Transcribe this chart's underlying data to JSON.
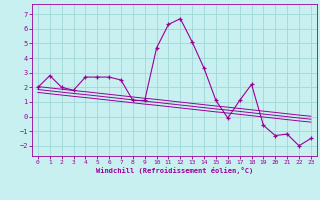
{
  "xlabel": "Windchill (Refroidissement éolien,°C)",
  "bg_color": "#c8f0f0",
  "grid_color": "#a0d8d8",
  "line_color": "#990099",
  "xlim": [
    -0.5,
    23.5
  ],
  "ylim": [
    -2.7,
    7.7
  ],
  "yticks": [
    -2,
    -1,
    0,
    1,
    2,
    3,
    4,
    5,
    6,
    7
  ],
  "xticks": [
    0,
    1,
    2,
    3,
    4,
    5,
    6,
    7,
    8,
    9,
    10,
    11,
    12,
    13,
    14,
    15,
    16,
    17,
    18,
    19,
    20,
    21,
    22,
    23
  ],
  "series1_x": [
    0,
    1,
    2,
    3,
    4,
    5,
    6,
    7,
    8,
    9,
    10,
    11,
    12,
    13,
    14,
    15,
    16,
    17,
    18,
    19,
    20,
    21,
    22,
    23
  ],
  "series1_y": [
    2.0,
    2.8,
    2.0,
    1.8,
    2.7,
    2.7,
    2.7,
    2.5,
    1.1,
    1.1,
    4.7,
    6.3,
    6.7,
    5.1,
    3.3,
    1.1,
    -0.1,
    1.1,
    2.2,
    -0.6,
    -1.3,
    -1.2,
    -2.0,
    -1.5
  ],
  "series2_x": [
    0,
    1,
    2,
    3,
    4,
    5,
    6,
    7,
    8,
    9,
    10,
    11,
    12,
    13,
    14,
    15,
    16,
    17,
    18,
    19,
    20,
    21,
    22,
    23
  ],
  "series2_y": [
    2.05,
    1.96,
    1.87,
    1.78,
    1.7,
    1.61,
    1.52,
    1.43,
    1.34,
    1.25,
    1.17,
    1.08,
    0.99,
    0.9,
    0.81,
    0.72,
    0.64,
    0.55,
    0.46,
    0.37,
    0.28,
    0.19,
    0.1,
    0.02
  ],
  "series3_x": [
    0,
    1,
    2,
    3,
    4,
    5,
    6,
    7,
    8,
    9,
    10,
    11,
    12,
    13,
    14,
    15,
    16,
    17,
    18,
    19,
    20,
    21,
    22,
    23
  ],
  "series3_y": [
    1.85,
    1.76,
    1.67,
    1.58,
    1.5,
    1.41,
    1.32,
    1.23,
    1.14,
    1.05,
    0.97,
    0.88,
    0.79,
    0.7,
    0.61,
    0.52,
    0.44,
    0.35,
    0.26,
    0.17,
    0.08,
    -0.01,
    -0.1,
    -0.18
  ],
  "series4_x": [
    0,
    1,
    2,
    3,
    4,
    5,
    6,
    7,
    8,
    9,
    10,
    11,
    12,
    13,
    14,
    15,
    16,
    17,
    18,
    19,
    20,
    21,
    22,
    23
  ],
  "series4_y": [
    1.65,
    1.56,
    1.47,
    1.38,
    1.3,
    1.21,
    1.12,
    1.03,
    0.94,
    0.85,
    0.77,
    0.68,
    0.59,
    0.5,
    0.41,
    0.32,
    0.24,
    0.15,
    0.06,
    -0.03,
    -0.12,
    -0.21,
    -0.3,
    -0.38
  ]
}
